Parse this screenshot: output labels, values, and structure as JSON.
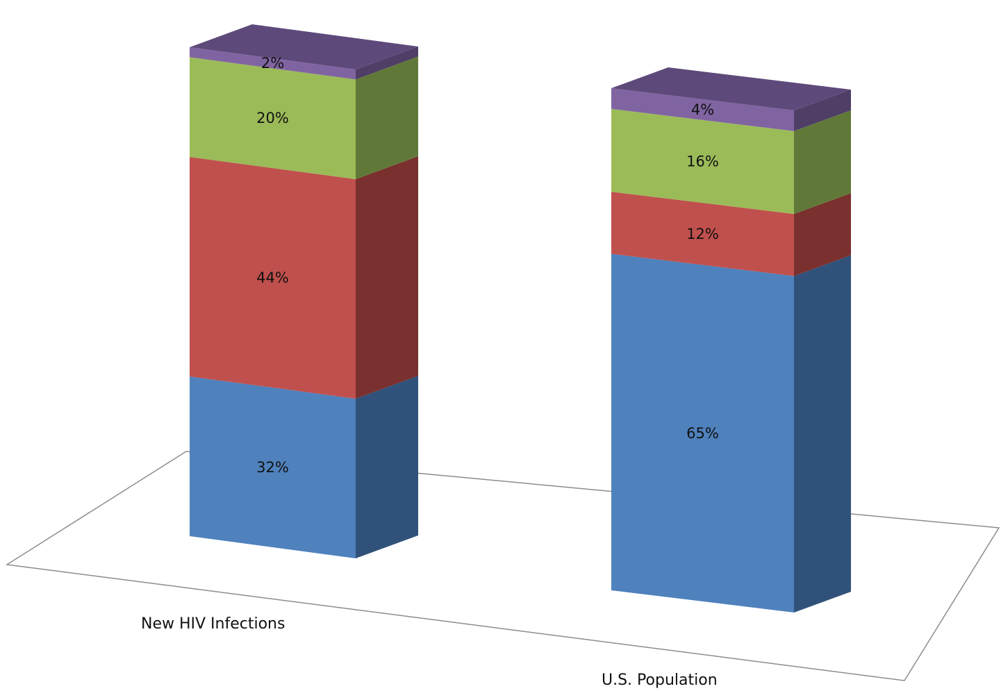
{
  "chart_data": {
    "type": "bar",
    "stacked": true,
    "three_d": true,
    "title": "",
    "xlabel": "",
    "ylabel": "",
    "legend": "none",
    "grid": false,
    "ylim": [
      0,
      100
    ],
    "categories": [
      "New HIV Infections",
      "U.S. Population"
    ],
    "series": [
      {
        "values": [
          32,
          65
        ],
        "labels": [
          "32%",
          "65%"
        ],
        "color": "#4F81BD",
        "side_color": "#30527A",
        "top_color": "#4F81BD"
      },
      {
        "values": [
          44,
          12
        ],
        "labels": [
          "44%",
          "12%"
        ],
        "color": "#C0504D",
        "side_color": "#7A302E",
        "top_color": "#C0504D"
      },
      {
        "values": [
          20,
          16
        ],
        "labels": [
          "20%",
          "16%"
        ],
        "color": "#9BBB59",
        "side_color": "#617938",
        "top_color": "#9BBB59"
      },
      {
        "values": [
          2,
          4
        ],
        "labels": [
          "2%",
          "4%"
        ],
        "color": "#8064A2",
        "side_color": "#4F3E66",
        "top_color": "#5E4A7A"
      }
    ]
  }
}
